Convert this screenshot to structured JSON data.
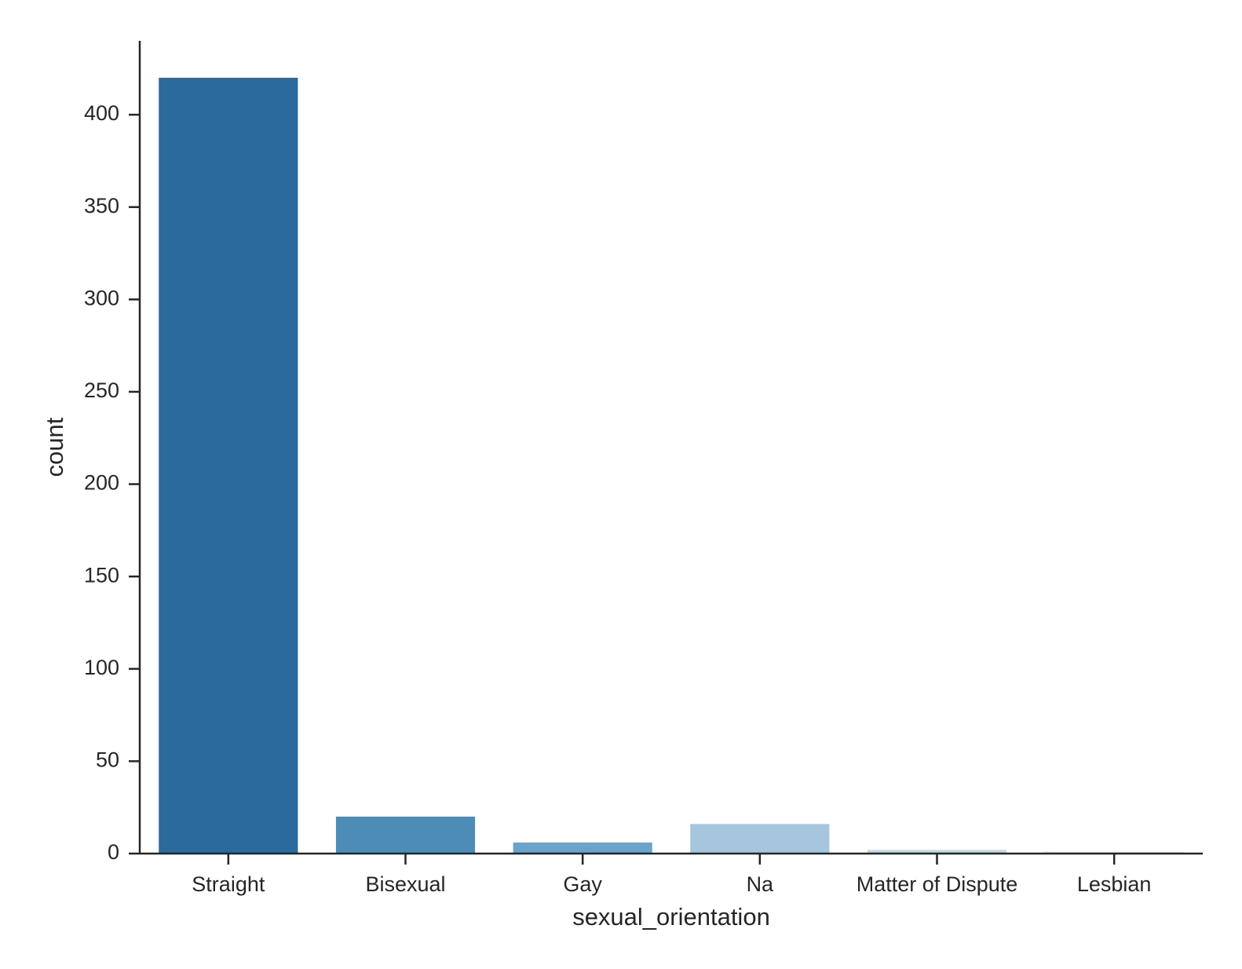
{
  "chart_data": {
    "type": "bar",
    "title": "",
    "xlabel": "sexual_orientation",
    "ylabel": "count",
    "categories": [
      "Straight",
      "Bisexual",
      "Gay",
      "Na",
      "Matter of Dispute",
      "Lesbian"
    ],
    "values": [
      420,
      20,
      6,
      16,
      2,
      1
    ],
    "colors": [
      "#2a6a9c",
      "#4e8cb8",
      "#6aa4cb",
      "#a5c6dc",
      "#c3d9e8",
      "#d8e6f0"
    ],
    "ylim": [
      0,
      440
    ],
    "yticks": [
      0,
      50,
      100,
      150,
      200,
      250,
      300,
      350,
      400
    ],
    "grid": false,
    "legend": "none"
  }
}
